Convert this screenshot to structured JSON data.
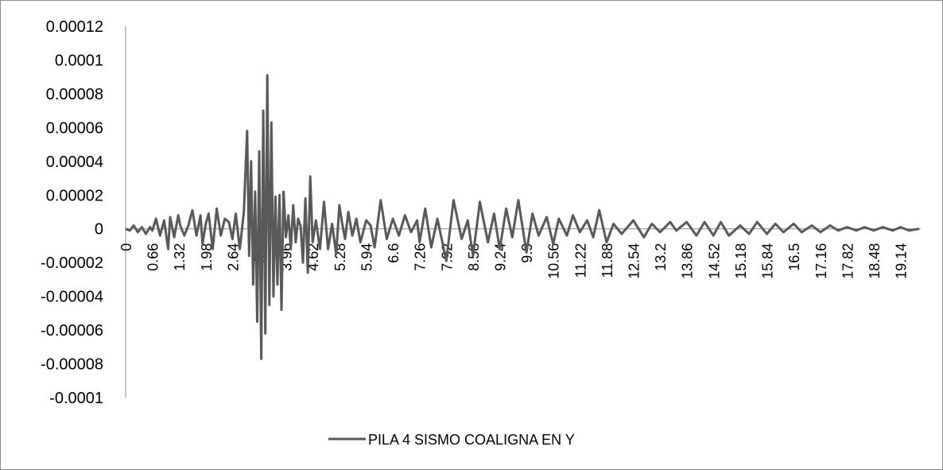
{
  "chart_data": {
    "type": "line",
    "title": "",
    "xlabel": "",
    "ylabel": "",
    "ylim": [
      -0.0001,
      0.00012
    ],
    "y_ticks": [
      "0.00012",
      "0.0001",
      "0.00008",
      "0.00006",
      "0.00004",
      "0.00002",
      "0",
      "-0.00002",
      "-0.00004",
      "-0.00006",
      "-0.00008",
      "-0.0001"
    ],
    "x_ticks": [
      "0",
      "0.66",
      "1.32",
      "1.98",
      "2.64",
      "3.3",
      "3.96",
      "4.62",
      "5.28",
      "5.94",
      "6.6",
      "7.26",
      "7.92",
      "8.58",
      "9.24",
      "9.9",
      "10.56",
      "11.22",
      "11.88",
      "12.54",
      "13.2",
      "13.86",
      "14.52",
      "15.18",
      "15.84",
      "16.5",
      "17.16",
      "17.82",
      "18.48",
      "19.14"
    ],
    "legend_position": "bottom",
    "grid": false,
    "color": "#595959",
    "series": [
      {
        "name": "PILA 4 SISMO COALIGNA EN Y",
        "x": [
          0,
          0.1,
          0.2,
          0.3,
          0.4,
          0.5,
          0.6,
          0.66,
          0.75,
          0.85,
          0.95,
          1.05,
          1.1,
          1.2,
          1.3,
          1.35,
          1.45,
          1.55,
          1.65,
          1.75,
          1.85,
          1.9,
          1.98,
          2.05,
          2.15,
          2.25,
          2.35,
          2.45,
          2.55,
          2.64,
          2.72,
          2.82,
          2.92,
          3.0,
          3.05,
          3.1,
          3.15,
          3.2,
          3.25,
          3.3,
          3.35,
          3.4,
          3.45,
          3.5,
          3.55,
          3.6,
          3.65,
          3.7,
          3.75,
          3.8,
          3.85,
          3.9,
          3.96,
          4.02,
          4.08,
          4.14,
          4.2,
          4.26,
          4.32,
          4.38,
          4.44,
          4.5,
          4.56,
          4.62,
          4.7,
          4.8,
          4.9,
          5.0,
          5.1,
          5.2,
          5.28,
          5.35,
          5.42,
          5.5,
          5.6,
          5.7,
          5.8,
          5.94,
          6.05,
          6.15,
          6.3,
          6.45,
          6.6,
          6.75,
          6.9,
          7.05,
          7.2,
          7.26,
          7.4,
          7.55,
          7.7,
          7.92,
          8.1,
          8.3,
          8.45,
          8.58,
          8.75,
          8.95,
          9.1,
          9.24,
          9.4,
          9.55,
          9.7,
          9.9,
          10.05,
          10.2,
          10.4,
          10.56,
          10.7,
          10.9,
          11.05,
          11.22,
          11.4,
          11.55,
          11.7,
          11.88,
          12.05,
          12.25,
          12.54,
          12.8,
          13.0,
          13.2,
          13.45,
          13.6,
          13.86,
          14.1,
          14.3,
          14.52,
          14.7,
          14.9,
          15.18,
          15.4,
          15.6,
          15.84,
          16.05,
          16.25,
          16.5,
          16.7,
          16.95,
          17.16,
          17.4,
          17.6,
          17.82,
          18.05,
          18.25,
          18.48,
          18.7,
          18.95,
          19.14,
          19.35,
          19.6
        ],
        "y": [
          0,
          -1e-06,
          2e-06,
          -2e-06,
          1e-06,
          -3e-06,
          1e-06,
          -1e-06,
          6e-06,
          -4e-06,
          5e-06,
          -1.2e-05,
          7e-06,
          -5e-06,
          8e-06,
          2e-06,
          -4e-06,
          2e-06,
          1.1e-05,
          -4e-06,
          8e-06,
          -9e-06,
          3e-06,
          9e-06,
          -1.2e-05,
          1.2e-05,
          -4e-06,
          6e-06,
          4e-06,
          -6e-06,
          9e-06,
          -1.2e-05,
          1e-05,
          5.8e-05,
          -1.6e-05,
          4e-05,
          -3.3e-05,
          2.2e-05,
          -5.5e-05,
          4.6e-05,
          -7.7e-05,
          7e-05,
          -6.2e-05,
          9.1e-05,
          -4.5e-05,
          6.3e-05,
          -4e-05,
          1.9e-05,
          -3.3e-05,
          2e-05,
          -4.8e-05,
          2.2e-05,
          -5e-06,
          8e-06,
          -1.2e-05,
          1.4e-05,
          -8e-06,
          6e-06,
          2e-06,
          -2e-05,
          1.8e-05,
          -2.6e-05,
          3.1e-05,
          -8e-06,
          5e-06,
          -1.2e-05,
          1.6e-05,
          -1.2e-05,
          3e-06,
          -1.5e-05,
          1.4e-05,
          3e-06,
          -6e-06,
          1e-05,
          -4e-06,
          6e-06,
          -8e-06,
          5e-06,
          2e-06,
          -1.1e-05,
          1.7e-05,
          -6e-06,
          6e-06,
          -4e-06,
          8e-06,
          -2e-06,
          5e-06,
          -8e-06,
          1.2e-05,
          -1.1e-05,
          6e-06,
          -1.9e-05,
          1.7e-05,
          -6e-06,
          5e-06,
          -1.6e-05,
          1.6e-05,
          -8e-06,
          9e-06,
          -1.2e-05,
          1.2e-05,
          -5e-06,
          1.7e-05,
          -1.4e-05,
          9e-06,
          -4e-06,
          7e-06,
          -9e-06,
          6e-06,
          -4e-06,
          8e-06,
          -2e-06,
          5e-06,
          -5e-06,
          1.1e-05,
          -8e-06,
          3e-06,
          -3e-06,
          5e-06,
          -5e-06,
          3e-06,
          -2e-06,
          4e-06,
          -1e-06,
          4e-06,
          -4e-06,
          4e-06,
          -4e-06,
          4e-06,
          -4e-06,
          2e-06,
          -3e-06,
          4e-06,
          -3e-06,
          3e-06,
          -2e-06,
          3e-06,
          -2e-06,
          2e-06,
          -2e-06,
          2e-06,
          -1e-06,
          1e-06,
          -1e-06,
          1e-06,
          -1e-06,
          1e-06,
          -1e-06,
          1e-06,
          -1e-06,
          0
        ]
      }
    ]
  }
}
